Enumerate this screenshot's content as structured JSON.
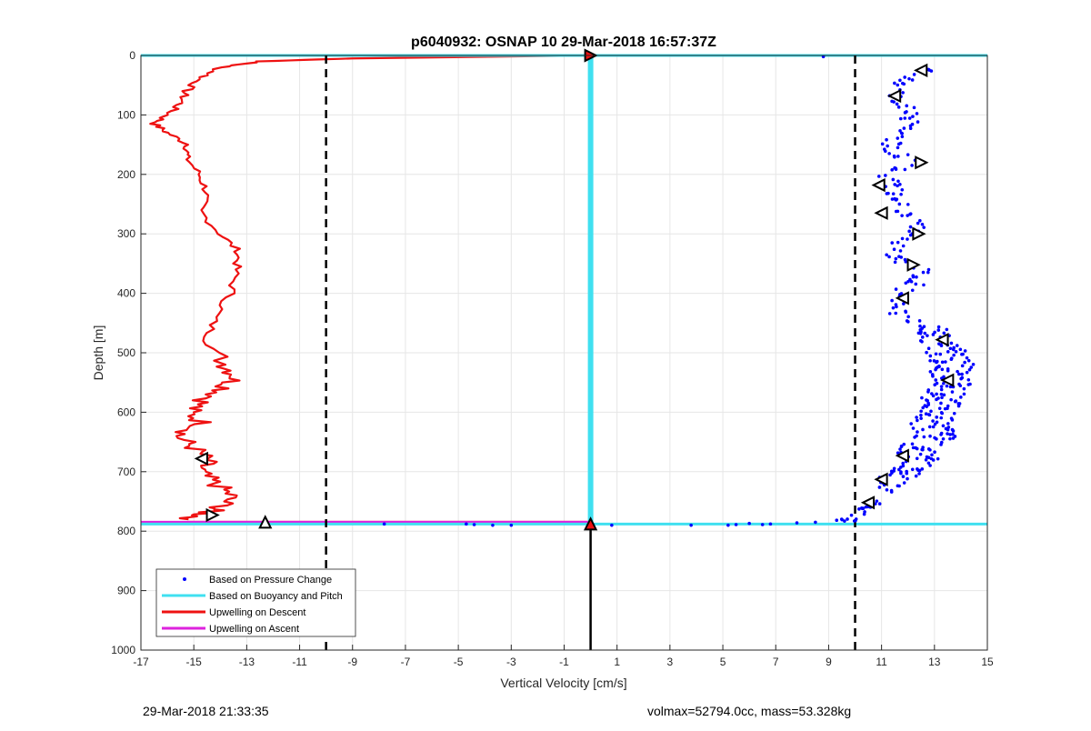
{
  "footer": {
    "timestamp": "29-Mar-2018 21:33:35",
    "info": "volmax=52794.0cc, mass=53.328kg"
  },
  "chart_data": {
    "type": "scatter",
    "title": "p6040932: OSNAP 10 29-Mar-2018 16:57:37Z",
    "xlabel": "Vertical Velocity [cm/s]",
    "ylabel": "Depth [m]",
    "xlim": [
      -17,
      15
    ],
    "ylim": [
      0,
      1000
    ],
    "y_reversed": true,
    "grid": true,
    "x_ticks": [
      -17,
      -15,
      -13,
      -11,
      -9,
      -7,
      -5,
      -3,
      -1,
      1,
      3,
      5,
      7,
      9,
      11,
      13,
      15
    ],
    "y_ticks": [
      0,
      100,
      200,
      300,
      400,
      500,
      600,
      700,
      800,
      900,
      1000
    ],
    "legend": {
      "placement": "bottom-left",
      "entries": [
        {
          "label": "Based on Pressure Change",
          "color": "#0000ff",
          "style": "dot"
        },
        {
          "label": "Based on Buoyancy and Pitch",
          "color": "#40e0f0",
          "style": "line"
        },
        {
          "label": "Upwelling on Descent",
          "color": "#ee1111",
          "style": "line"
        },
        {
          "label": "Upwelling on Ascent",
          "color": "#dd22dd",
          "style": "line"
        }
      ]
    },
    "colors": {
      "pressure": "#0000ff",
      "buoyancy": "#40e0f0",
      "descent": "#ee1111",
      "ascent": "#dd22dd",
      "reference": "#000000"
    },
    "reference_lines": {
      "vertical_dashed_x": [
        -10,
        10
      ],
      "zero_line_x": 0,
      "zero_line_depth_range": [
        788,
        1000
      ]
    },
    "buoyancy_segments": [
      {
        "depth": [
          0,
          0
        ],
        "x": [
          -17,
          15
        ]
      },
      {
        "depth": [
          0,
          788
        ],
        "x": [
          0,
          0
        ]
      },
      {
        "depth": [
          788,
          788
        ],
        "x": [
          -17,
          15
        ]
      }
    ],
    "ascent_segments": [
      {
        "depth": [
          0,
          0
        ],
        "x": [
          -17,
          3
        ]
      },
      {
        "depth": [
          785,
          785
        ],
        "x": [
          -17,
          0
        ]
      }
    ],
    "upwelling_descent": {
      "depth": [
        5,
        10,
        20,
        40,
        60,
        80,
        100,
        115,
        130,
        150,
        170,
        200,
        230,
        260,
        300,
        330,
        360,
        400,
        440,
        480,
        520,
        540,
        560,
        580,
        600,
        620,
        640,
        660,
        680,
        700,
        720,
        740,
        760,
        770,
        780
      ],
      "x": [
        -9,
        -12.5,
        -14,
        -14.8,
        -15.3,
        -15.5,
        -16,
        -16.5,
        -16,
        -15.2,
        -15.3,
        -14.8,
        -14.5,
        -14.8,
        -14,
        -13.3,
        -13.4,
        -13.6,
        -14.2,
        -14.5,
        -13.8,
        -13.4,
        -13.8,
        -14.6,
        -15.2,
        -14.6,
        -15.6,
        -15,
        -14.5,
        -14.8,
        -14.2,
        -13.6,
        -14,
        -14.6,
        -15.2
      ]
    },
    "descent_flat": {
      "depth": 785,
      "x": [
        -15.2,
        0
      ]
    },
    "pressure_change": {
      "depth": [
        20,
        40,
        60,
        80,
        100,
        120,
        140,
        160,
        180,
        200,
        220,
        240,
        260,
        280,
        300,
        320,
        340,
        360,
        380,
        400,
        420,
        440,
        460,
        480,
        500,
        520,
        540,
        560,
        580,
        600,
        620,
        640,
        660,
        680,
        700,
        720,
        740,
        760,
        775,
        785
      ],
      "x": [
        12.8,
        12,
        11.6,
        11.8,
        12,
        12,
        11.5,
        11.2,
        12.4,
        11.3,
        11.3,
        11.7,
        11.6,
        12.4,
        12.2,
        11.6,
        11.5,
        12.4,
        12.4,
        11.7,
        11.7,
        11.7,
        13,
        13.1,
        13.5,
        13.7,
        13.6,
        13.6,
        13.2,
        13.1,
        12.9,
        13.1,
        12.4,
        12.4,
        12,
        11.4,
        11,
        10.6,
        10.1,
        9.5
      ],
      "extra_points": [
        {
          "x": 8.8,
          "depth": 2
        },
        {
          "x": 9.6,
          "depth": 783
        },
        {
          "x": 8.5,
          "depth": 785
        },
        {
          "x": 7.8,
          "depth": 786
        },
        {
          "x": 6.8,
          "depth": 788
        },
        {
          "x": 6.5,
          "depth": 789
        },
        {
          "x": 6,
          "depth": 787
        },
        {
          "x": 5.5,
          "depth": 789
        },
        {
          "x": 5.2,
          "depth": 790
        },
        {
          "x": 3.8,
          "depth": 790
        },
        {
          "x": 0.8,
          "depth": 790
        },
        {
          "x": -3,
          "depth": 790
        },
        {
          "x": -3.7,
          "depth": 790
        },
        {
          "x": -4.4,
          "depth": 789
        },
        {
          "x": -4.7,
          "depth": 788
        },
        {
          "x": -7.8,
          "depth": 788
        }
      ]
    },
    "markers": [
      {
        "x": 0,
        "depth": 0,
        "dir": "right",
        "fill": "#ee1111"
      },
      {
        "x": 0,
        "depth": 788,
        "dir": "up",
        "fill": "#ee1111"
      },
      {
        "x": -12.3,
        "depth": 785,
        "dir": "up",
        "fill": "#ffffff"
      },
      {
        "x": -14.3,
        "depth": 773,
        "dir": "right",
        "fill": "#ffffff"
      },
      {
        "x": -14.7,
        "depth": 678,
        "dir": "left",
        "fill": "#ffffff"
      },
      {
        "x": 12.5,
        "depth": 25,
        "dir": "left",
        "fill": "#ffffff"
      },
      {
        "x": 11.5,
        "depth": 68,
        "dir": "left",
        "fill": "#ffffff"
      },
      {
        "x": 12.5,
        "depth": 180,
        "dir": "right",
        "fill": "#ffffff"
      },
      {
        "x": 10.9,
        "depth": 218,
        "dir": "left",
        "fill": "#ffffff"
      },
      {
        "x": 11,
        "depth": 265,
        "dir": "left",
        "fill": "#ffffff"
      },
      {
        "x": 12.4,
        "depth": 300,
        "dir": "right",
        "fill": "#ffffff"
      },
      {
        "x": 12.2,
        "depth": 352,
        "dir": "right",
        "fill": "#ffffff"
      },
      {
        "x": 11.8,
        "depth": 408,
        "dir": "left",
        "fill": "#ffffff"
      },
      {
        "x": 13.3,
        "depth": 478,
        "dir": "left",
        "fill": "#ffffff"
      },
      {
        "x": 13.5,
        "depth": 546,
        "dir": "left",
        "fill": "#ffffff"
      },
      {
        "x": 11.8,
        "depth": 673,
        "dir": "left",
        "fill": "#ffffff"
      },
      {
        "x": 11,
        "depth": 713,
        "dir": "left",
        "fill": "#ffffff"
      },
      {
        "x": 10.5,
        "depth": 752,
        "dir": "left",
        "fill": "#ffffff"
      }
    ]
  }
}
